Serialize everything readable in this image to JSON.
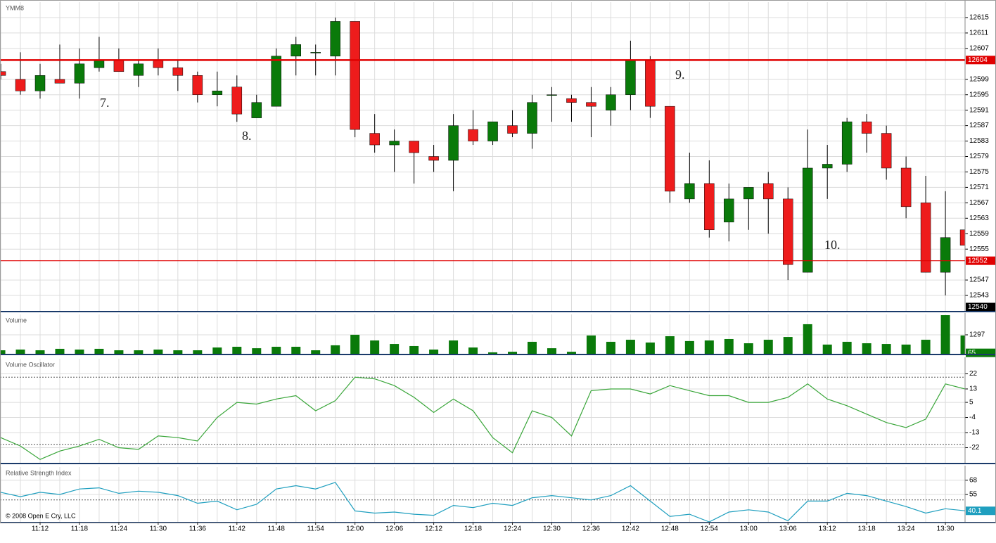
{
  "chart_data": [
    {
      "type": "candlestick",
      "title": "YMM8",
      "open": [
        12601,
        12599,
        12596,
        12599,
        12598,
        12602,
        12604,
        12600,
        12604,
        12602,
        12600,
        12595,
        12597,
        12589,
        12592,
        12605,
        12606,
        12605,
        12614,
        12585,
        12582,
        12583,
        12579,
        12578,
        12586,
        12583,
        12587,
        12585,
        12595,
        12594,
        12593,
        12591,
        12595,
        12604,
        12592,
        12568,
        12572,
        12562,
        12568,
        12572,
        12568,
        12549,
        12576,
        12577,
        12588,
        12585,
        12576,
        12567,
        12549,
        12560
      ],
      "high": [
        12603,
        12606,
        12603,
        12608,
        12607,
        12610,
        12607,
        12604,
        12607,
        12604,
        12601,
        12601,
        12600,
        12595,
        12607,
        12610,
        12608,
        12615,
        12614,
        12590,
        12586,
        12583,
        12582,
        12590,
        12591,
        12588,
        12591,
        12595,
        12597,
        12595,
        12597,
        12597,
        12609,
        12605,
        12592,
        12580,
        12578,
        12572,
        12571,
        12575,
        12571,
        12586,
        12582,
        12589,
        12590,
        12587,
        12579,
        12574,
        12570,
        12561
      ],
      "low": [
        12599,
        12595,
        12594,
        12598,
        12594,
        12601,
        12601,
        12597,
        12600,
        12596,
        12593,
        12592,
        12588,
        12589,
        12592,
        12600,
        12600,
        12600,
        12584,
        12580,
        12575,
        12572,
        12575,
        12570,
        12582,
        12582,
        12584,
        12581,
        12588,
        12588,
        12584,
        12587,
        12591,
        12589,
        12567,
        12567,
        12558,
        12557,
        12560,
        12559,
        12547,
        12549,
        12568,
        12575,
        12580,
        12573,
        12563,
        12549,
        12543,
        12556
      ],
      "close": [
        12600,
        12596,
        12600,
        12598,
        12603,
        12604,
        12601,
        12603,
        12602,
        12600,
        12595,
        12596,
        12590,
        12593,
        12605,
        12608,
        12606,
        12614,
        12586,
        12582,
        12583,
        12580,
        12578,
        12587,
        12583,
        12588,
        12585,
        12593,
        12595,
        12593,
        12592,
        12595,
        12604,
        12592,
        12570,
        12572,
        12560,
        12568,
        12571,
        12568,
        12551,
        12576,
        12577,
        12588,
        12585,
        12576,
        12566,
        12549,
        12558,
        12556
      ],
      "up_color": "#0a7a0a",
      "down_color": "#ee1c1c",
      "ylim": [
        12539,
        12619
      ],
      "yticks": [
        12615,
        12611,
        12607,
        12599,
        12595,
        12591,
        12587,
        12583,
        12579,
        12575,
        12571,
        12567,
        12563,
        12559,
        12555,
        12547,
        12543
      ],
      "levels": [
        {
          "value": 12604,
          "color": "#e00000",
          "line": true
        },
        {
          "value": 12552,
          "color": "#e00000",
          "line": true
        },
        {
          "value": 12540,
          "color": "#000000",
          "line": false
        }
      ],
      "annotations": [
        "7.",
        "8.",
        "9.",
        "10."
      ],
      "grid": true
    },
    {
      "type": "bar",
      "title": "Volume",
      "values": [
        240,
        290,
        240,
        340,
        290,
        340,
        240,
        240,
        290,
        240,
        240,
        430,
        480,
        380,
        480,
        480,
        240,
        580,
        1300,
        910,
        670,
        530,
        290,
        910,
        430,
        100,
        140,
        820,
        380,
        140,
        1250,
        820,
        960,
        770,
        1200,
        870,
        910,
        1010,
        720,
        960,
        1150,
        2020,
        630,
        820,
        720,
        670,
        630,
        960,
        2640,
        1250
      ],
      "color": "#0a7a0a",
      "ylim": [
        0,
        2690
      ],
      "yticks": [
        1297
      ],
      "levels": [
        {
          "value": 65,
          "color": "#0a7a0a",
          "line": false
        }
      ],
      "grid": true
    },
    {
      "type": "line",
      "title": "Volume Oscillator",
      "values": [
        -16,
        -21,
        -29,
        -24,
        -21,
        -17,
        -22,
        -23,
        -15,
        -16,
        -18,
        -4,
        5,
        4,
        7,
        9,
        0,
        6,
        20,
        19,
        15,
        8,
        -1,
        7,
        0,
        -16,
        -25,
        0,
        -4,
        -15,
        12,
        13,
        13,
        10,
        15,
        12,
        9,
        9,
        5,
        5,
        8,
        16,
        7,
        3,
        -2,
        -7,
        -10,
        -5,
        16,
        13
      ],
      "color": "#3aa63a",
      "ylim": [
        -31,
        31
      ],
      "yticks": [
        22,
        13,
        5,
        -4,
        -13,
        -22
      ],
      "reference_lines": [
        20,
        -20
      ],
      "grid": true
    },
    {
      "type": "line",
      "title": "Relative Strength Index",
      "values": [
        57,
        53,
        57,
        55,
        60,
        61,
        56,
        58,
        57,
        54,
        47,
        49,
        41,
        46,
        60,
        63,
        60,
        66,
        40,
        38,
        39,
        37,
        36,
        45,
        43,
        47,
        45,
        52,
        54,
        52,
        50,
        54,
        63,
        49,
        35,
        37,
        30,
        39,
        41,
        39,
        31,
        49,
        49,
        56,
        54,
        49,
        44,
        38,
        42,
        40.1
      ],
      "color": "#1f9fbf",
      "ylim": [
        30,
        80
      ],
      "yticks": [
        68,
        55
      ],
      "reference_lines": [
        50
      ],
      "levels": [
        {
          "value": 40.1,
          "color": "#1f9fbf",
          "line": false
        }
      ],
      "grid": true,
      "categories": [
        null,
        null,
        "11:12",
        null,
        "11:18",
        null,
        "11:24",
        null,
        "11:30",
        null,
        "11:36",
        null,
        "11:42",
        null,
        "11:48",
        null,
        "11:54",
        null,
        "12:00",
        null,
        "12:06",
        null,
        "12:12",
        null,
        "12:18",
        null,
        "12:24",
        null,
        "12:30",
        null,
        "12:36",
        null,
        "12:42",
        null,
        "12:48",
        null,
        "12:54",
        null,
        "13:00",
        null,
        "13:06",
        null,
        "13:12",
        null,
        "13:18",
        null,
        "13:24",
        null,
        "13:30",
        null
      ],
      "copyright": "© 2008 Open E Cry, LLC"
    }
  ]
}
